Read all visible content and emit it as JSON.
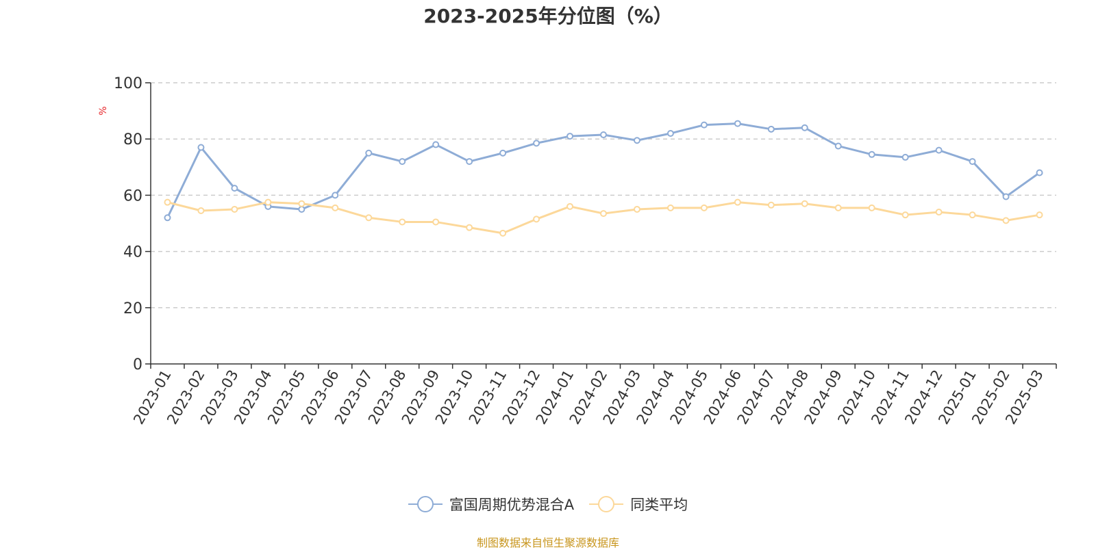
{
  "chart_data": {
    "type": "line",
    "title": "2023-2025年分位图（%）",
    "ylabel": "%",
    "xlabel": "",
    "ylim": [
      0,
      100
    ],
    "yticks": [
      0,
      20,
      40,
      60,
      80,
      100
    ],
    "grid": true,
    "legend_position": "bottom",
    "categories": [
      "2023-01",
      "2023-02",
      "2023-03",
      "2023-04",
      "2023-05",
      "2023-06",
      "2023-07",
      "2023-08",
      "2023-09",
      "2023-10",
      "2023-11",
      "2023-12",
      "2024-01",
      "2024-02",
      "2024-03",
      "2024-04",
      "2024-05",
      "2024-06",
      "2024-07",
      "2024-08",
      "2024-09",
      "2024-10",
      "2024-11",
      "2024-12",
      "2025-01",
      "2025-02",
      "2025-03"
    ],
    "series": [
      {
        "name": "富国周期优势混合A",
        "color": "#8eacd6",
        "values": [
          52,
          77,
          62.5,
          56,
          55,
          60,
          75,
          72,
          78,
          72,
          75,
          78.5,
          81,
          81.5,
          79.5,
          82,
          85,
          85.5,
          83.5,
          84,
          77.5,
          74.5,
          73.5,
          76,
          72,
          59.5,
          68
        ]
      },
      {
        "name": "同类平均",
        "color": "#fcd89a",
        "values": [
          57.5,
          54.5,
          55,
          57.5,
          57,
          55.5,
          52,
          50.5,
          50.5,
          48.5,
          46.5,
          51.5,
          56,
          53.5,
          55,
          55.5,
          55.5,
          57.5,
          56.5,
          57,
          55.5,
          55.5,
          53,
          54,
          53,
          51,
          53
        ]
      }
    ]
  },
  "colors": {
    "ylabel": "#e6262a",
    "source_note": "#c8961e",
    "grid": "#cccccc",
    "axis": "#333333"
  },
  "footer": {
    "source": "制图数据来自恒生聚源数据库"
  }
}
